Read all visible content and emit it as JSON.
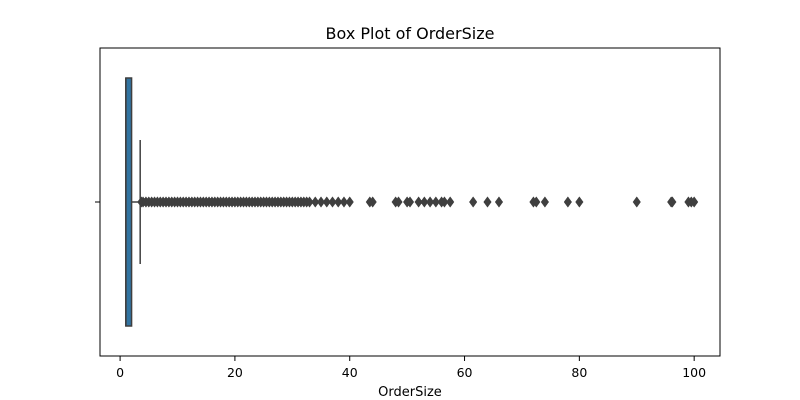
{
  "chart_data": {
    "type": "box",
    "title": "Box Plot of OrderSize",
    "xlabel": "OrderSize",
    "ylabel": "",
    "xlim": [
      -3.5,
      104.5
    ],
    "xticks": [
      0,
      20,
      40,
      60,
      80,
      100
    ],
    "grid": false,
    "legend": "none",
    "box_color": "#3274a1",
    "line_color": "#3f3f3f",
    "box": {
      "q1": 1,
      "median": 1,
      "q3": 2,
      "whisker_low": 1,
      "whisker_high": 3.5
    },
    "outliers": [
      3.7,
      4,
      4.5,
      5,
      5.5,
      6,
      6.5,
      7,
      7.5,
      8,
      8.5,
      9,
      9.5,
      10,
      10.5,
      11,
      11.5,
      12,
      12.5,
      13,
      13.5,
      14,
      14.5,
      15,
      15.5,
      16,
      16.5,
      17,
      17.5,
      18,
      18.5,
      19,
      19.5,
      20,
      20.5,
      21,
      21.5,
      22,
      22.5,
      23,
      23.5,
      24,
      24.5,
      25,
      25.5,
      26,
      26.5,
      27,
      27.5,
      28,
      28.5,
      29,
      29.5,
      30,
      30.5,
      31,
      31.5,
      32,
      32.5,
      33,
      34,
      35,
      36,
      37,
      38,
      39,
      40,
      43.5,
      44,
      48,
      48.5,
      50,
      50.5,
      52,
      53,
      54,
      55,
      56,
      56.5,
      57.5,
      61.5,
      64,
      66,
      72,
      72.5,
      74,
      78,
      80,
      90,
      96,
      96.2,
      99,
      99.5,
      100
    ]
  }
}
